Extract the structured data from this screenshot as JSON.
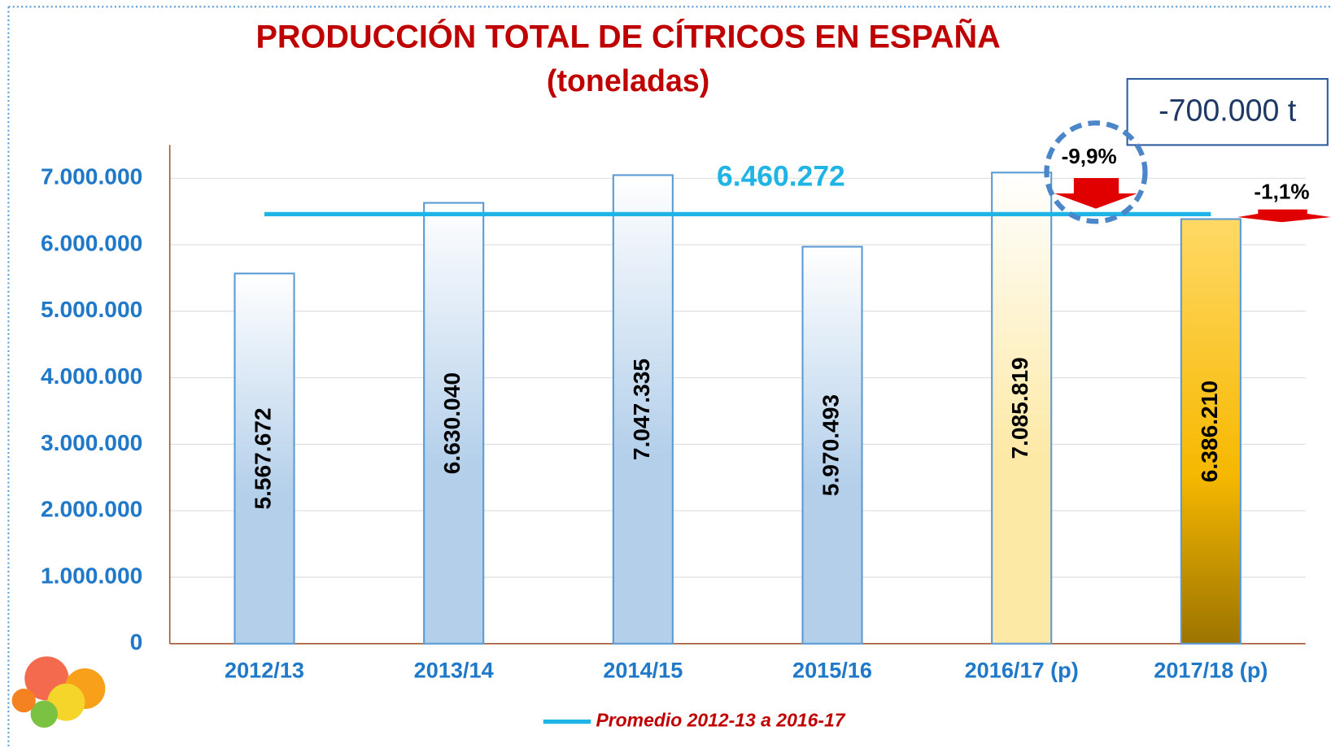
{
  "chart_data": {
    "type": "bar",
    "title": "PRODUCCIÓN TOTAL DE CÍTRICOS EN ESPAÑA",
    "subtitle": "(toneladas)",
    "categories": [
      "2012/13",
      "2013/14",
      "2014/15",
      "2015/16",
      "2016/17 (p)",
      "2017/18 (p)"
    ],
    "values": [
      5567672,
      6630040,
      7047335,
      5970493,
      7085819,
      6386210
    ],
    "value_labels": [
      "5.567.672",
      "6.630.040",
      "7.047.335",
      "5.970.493",
      "7.085.819",
      "6.386.210"
    ],
    "colors": [
      "#b3cfea",
      "#b3cfea",
      "#b3cfea",
      "#b3cfea",
      "#fde9a6",
      "#f6b800"
    ],
    "border_color": "#5b9bd5",
    "average": {
      "name": "Promedio 2012-13 a 2016-17",
      "value": 6460272,
      "label": "6.460.272",
      "color": "#1fb4e6"
    },
    "annotations": [
      "-700.000 t",
      "-9,9%",
      "-1,1%"
    ],
    "ylim": [
      0,
      7500000
    ],
    "yticks": [
      0,
      {
        "value": 1000000,
        "label": "1.000.000"
      },
      {
        "value": 2000000,
        "label": "2.000.000"
      },
      {
        "value": 3000000,
        "label": "3.000.000"
      },
      {
        "value": 4000000,
        "label": "4.000.000"
      },
      {
        "value": 5000000,
        "label": "5.000.000"
      },
      {
        "value": 6000000,
        "label": "6.000.000"
      },
      {
        "value": 7000000,
        "label": "7.000.000"
      }
    ],
    "grid": true
  }
}
